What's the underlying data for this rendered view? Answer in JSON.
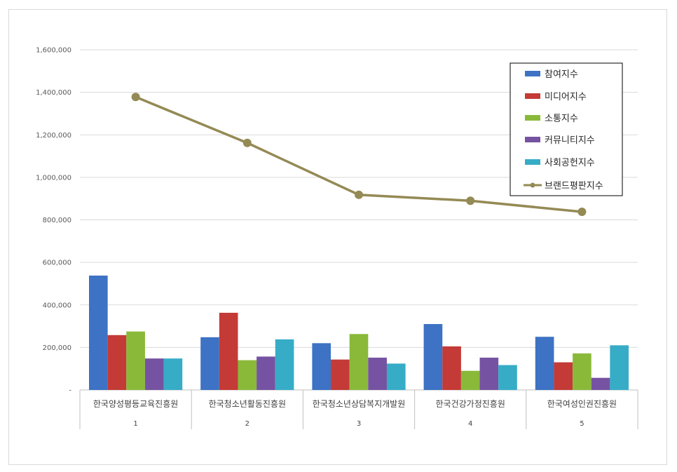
{
  "chart_data": {
    "type": "bar",
    "ylim": [
      0,
      1600000
    ],
    "y_ticks": [
      "-",
      "200,000",
      "400,000",
      "600,000",
      "800,000",
      "1,000,000",
      "1,200,000",
      "1,400,000",
      "1,600,000"
    ],
    "y_tick_values": [
      0,
      200000,
      400000,
      600000,
      800000,
      1000000,
      1200000,
      1400000,
      1600000
    ],
    "grid": true,
    "legend_position": "top-right",
    "categories": [
      "한국양성평등교육진흥원",
      "한국청소년활동진흥원",
      "한국청소년상담복지개발원",
      "한국건강가정진흥원",
      "한국여성인권진흥원"
    ],
    "ranks": [
      "1",
      "2",
      "3",
      "4",
      "5"
    ],
    "series": [
      {
        "name": "참여지수",
        "color": "#3d72c4",
        "values": [
          538000,
          248000,
          220000,
          310000,
          250000
        ]
      },
      {
        "name": "미디어지수",
        "color": "#c43a36",
        "values": [
          258000,
          363000,
          143000,
          205000,
          130000
        ]
      },
      {
        "name": "소통지수",
        "color": "#8ab93a",
        "values": [
          275000,
          140000,
          263000,
          90000,
          172000
        ]
      },
      {
        "name": "커뮤니티지수",
        "color": "#7553a2",
        "values": [
          148000,
          157000,
          152000,
          152000,
          57000
        ]
      },
      {
        "name": "사회공헌지수",
        "color": "#36acc7",
        "values": [
          148000,
          238000,
          124000,
          117000,
          210000
        ]
      }
    ],
    "line_series": {
      "name": "브랜드평판지수",
      "color": "#948a54",
      "values": [
        1378000,
        1162000,
        918000,
        890000,
        838000
      ]
    }
  }
}
